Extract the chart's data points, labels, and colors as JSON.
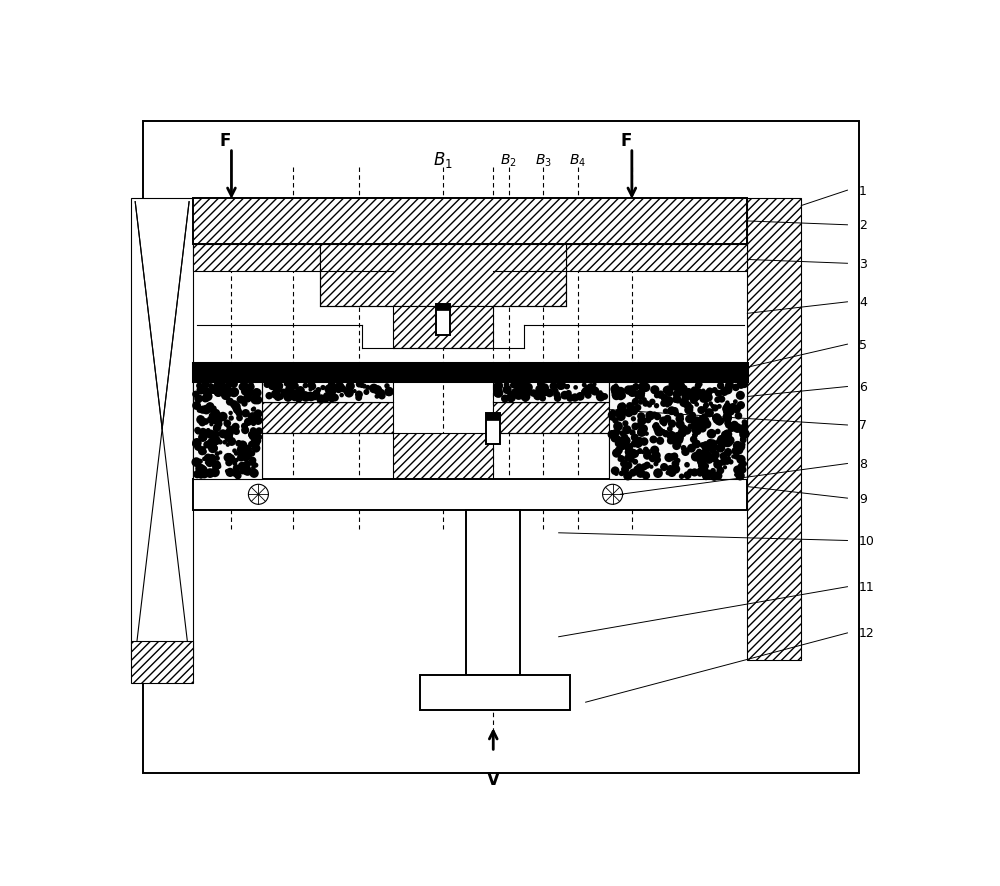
{
  "fig_width": 10.0,
  "fig_height": 8.87,
  "dpi": 100,
  "bg": "#ffffff",
  "lc": "#000000",
  "nums": [
    "1",
    "2",
    "3",
    "4",
    "5",
    "6",
    "7",
    "8",
    "9",
    "10",
    "11",
    "12"
  ]
}
